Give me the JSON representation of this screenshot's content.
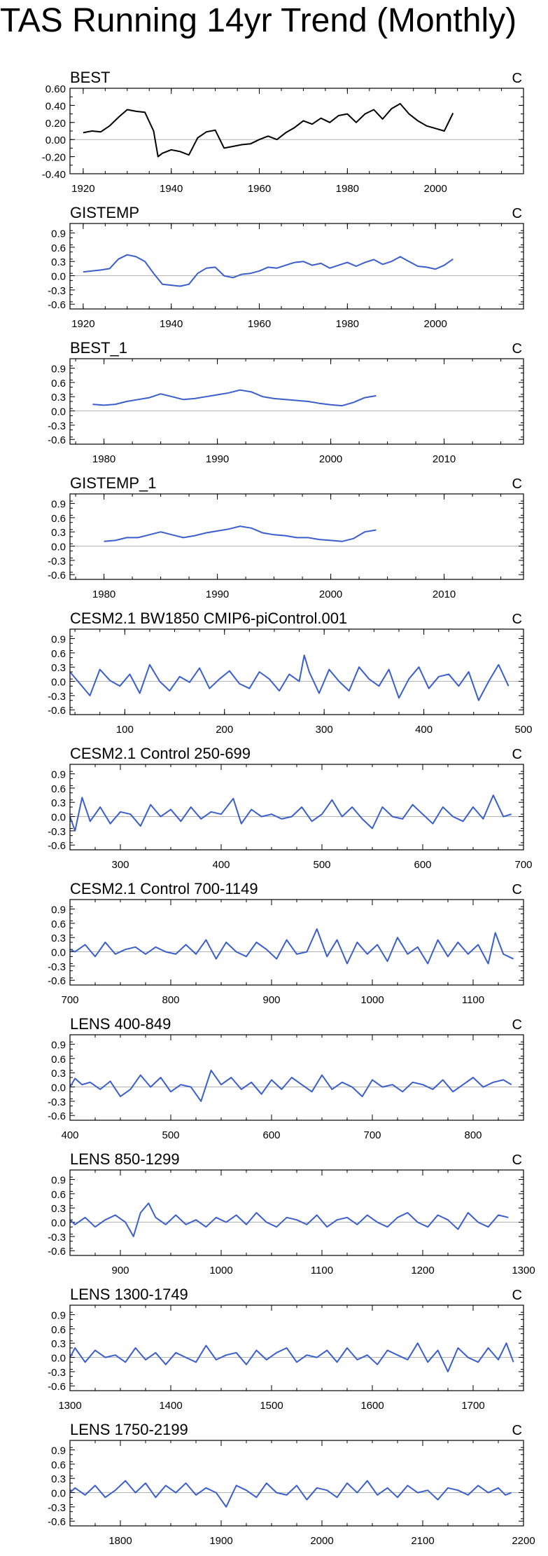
{
  "title": "TAS Running 14yr Trend (Monthly)",
  "colors": {
    "black": "#000000",
    "blue": "#3a5fcd",
    "zero_line": "#b4b4b4"
  },
  "chart_data": [
    {
      "type": "line",
      "title": "BEST",
      "units": "C",
      "color": "black",
      "xlim": [
        1917,
        2020
      ],
      "xticks": [
        1920,
        1940,
        1960,
        1980,
        2000
      ],
      "ylim": [
        -0.4,
        0.6
      ],
      "yticks": [
        -0.4,
        -0.2,
        0.0,
        0.2,
        0.4,
        0.6
      ],
      "ytick_labels": [
        "-0.40",
        "-0.20",
        "0.00",
        "0.20",
        "0.40",
        "0.60"
      ],
      "x": [
        1920,
        1922,
        1924,
        1926,
        1928,
        1930,
        1932,
        1934,
        1936,
        1937,
        1938,
        1940,
        1942,
        1944,
        1946,
        1948,
        1950,
        1952,
        1954,
        1956,
        1958,
        1960,
        1962,
        1964,
        1966,
        1968,
        1970,
        1972,
        1974,
        1976,
        1978,
        1980,
        1982,
        1984,
        1986,
        1988,
        1990,
        1992,
        1994,
        1996,
        1998,
        2000,
        2002,
        2004
      ],
      "values": [
        0.08,
        0.1,
        0.09,
        0.16,
        0.26,
        0.35,
        0.33,
        0.32,
        0.1,
        -0.2,
        -0.16,
        -0.12,
        -0.14,
        -0.18,
        0.02,
        0.09,
        0.11,
        -0.1,
        -0.08,
        -0.06,
        -0.05,
        0.0,
        0.04,
        0.0,
        0.08,
        0.14,
        0.22,
        0.18,
        0.25,
        0.2,
        0.28,
        0.3,
        0.2,
        0.3,
        0.35,
        0.24,
        0.36,
        0.42,
        0.3,
        0.22,
        0.16,
        0.13,
        0.1,
        0.31
      ]
    },
    {
      "type": "line",
      "title": "GISTEMP",
      "units": "C",
      "color": "blue",
      "xlim": [
        1917,
        2020
      ],
      "xticks": [
        1920,
        1940,
        1960,
        1980,
        2000
      ],
      "ylim": [
        -0.7,
        1.1
      ],
      "yticks": [
        -0.6,
        -0.3,
        0.0,
        0.3,
        0.6,
        0.9
      ],
      "ytick_labels": [
        "-0.6",
        "-0.3",
        "0.0",
        "0.3",
        "0.6",
        "0.9"
      ],
      "x": [
        1920,
        1922,
        1924,
        1926,
        1928,
        1930,
        1932,
        1934,
        1936,
        1938,
        1940,
        1942,
        1944,
        1946,
        1948,
        1950,
        1952,
        1954,
        1956,
        1958,
        1960,
        1962,
        1964,
        1966,
        1968,
        1970,
        1972,
        1974,
        1976,
        1978,
        1980,
        1982,
        1984,
        1986,
        1988,
        1990,
        1992,
        1994,
        1996,
        1998,
        2000,
        2002,
        2004
      ],
      "values": [
        0.08,
        0.1,
        0.12,
        0.15,
        0.35,
        0.44,
        0.4,
        0.3,
        0.05,
        -0.18,
        -0.2,
        -0.22,
        -0.18,
        0.05,
        0.16,
        0.18,
        0.0,
        -0.04,
        0.03,
        0.05,
        0.1,
        0.18,
        0.16,
        0.22,
        0.28,
        0.3,
        0.22,
        0.26,
        0.16,
        0.22,
        0.28,
        0.2,
        0.28,
        0.34,
        0.24,
        0.3,
        0.4,
        0.3,
        0.2,
        0.18,
        0.14,
        0.22,
        0.35
      ]
    },
    {
      "type": "line",
      "title": "BEST_1",
      "units": "C",
      "color": "blue",
      "xlim": [
        1977,
        2017
      ],
      "xticks": [
        1980,
        1990,
        2000,
        2010
      ],
      "ylim": [
        -0.7,
        1.1
      ],
      "yticks": [
        -0.6,
        -0.3,
        0.0,
        0.3,
        0.6,
        0.9
      ],
      "ytick_labels": [
        "-0.6",
        "-0.3",
        "0.0",
        "0.3",
        "0.6",
        "0.9"
      ],
      "x": [
        1979,
        1980,
        1981,
        1982,
        1983,
        1984,
        1985,
        1986,
        1987,
        1988,
        1989,
        1990,
        1991,
        1992,
        1993,
        1994,
        1995,
        1996,
        1997,
        1998,
        1999,
        2000,
        2001,
        2002,
        2003,
        2004
      ],
      "values": [
        0.14,
        0.12,
        0.14,
        0.2,
        0.24,
        0.28,
        0.36,
        0.3,
        0.24,
        0.26,
        0.3,
        0.34,
        0.38,
        0.44,
        0.4,
        0.3,
        0.26,
        0.24,
        0.22,
        0.2,
        0.16,
        0.13,
        0.11,
        0.18,
        0.28,
        0.32
      ]
    },
    {
      "type": "line",
      "title": "GISTEMP_1",
      "units": "C",
      "color": "blue",
      "xlim": [
        1977,
        2017
      ],
      "xticks": [
        1980,
        1990,
        2000,
        2010
      ],
      "ylim": [
        -0.7,
        1.1
      ],
      "yticks": [
        -0.6,
        -0.3,
        0.0,
        0.3,
        0.6,
        0.9
      ],
      "ytick_labels": [
        "-0.6",
        "-0.3",
        "0.0",
        "0.3",
        "0.6",
        "0.9"
      ],
      "x": [
        1980,
        1981,
        1982,
        1983,
        1984,
        1985,
        1986,
        1987,
        1988,
        1989,
        1990,
        1991,
        1992,
        1993,
        1994,
        1995,
        1996,
        1997,
        1998,
        1999,
        2000,
        2001,
        2002,
        2003,
        2004
      ],
      "values": [
        0.1,
        0.12,
        0.18,
        0.18,
        0.24,
        0.3,
        0.24,
        0.18,
        0.22,
        0.28,
        0.32,
        0.36,
        0.42,
        0.38,
        0.28,
        0.24,
        0.22,
        0.18,
        0.18,
        0.14,
        0.12,
        0.1,
        0.16,
        0.3,
        0.34
      ]
    },
    {
      "type": "line",
      "title": "CESM2.1 BW1850 CMIP6-piControl.001",
      "units": "C",
      "color": "blue",
      "xlim": [
        45,
        500
      ],
      "xticks": [
        100,
        200,
        300,
        400,
        500
      ],
      "ylim": [
        -0.7,
        1.1
      ],
      "yticks": [
        -0.6,
        -0.3,
        0.0,
        0.3,
        0.6,
        0.9
      ],
      "ytick_labels": [
        "-0.6",
        "-0.3",
        "0.0",
        "0.3",
        "0.6",
        "0.9"
      ],
      "x": [
        45,
        55,
        65,
        75,
        85,
        95,
        105,
        115,
        125,
        135,
        145,
        155,
        165,
        175,
        185,
        195,
        205,
        215,
        225,
        235,
        245,
        255,
        265,
        275,
        280,
        285,
        295,
        305,
        315,
        325,
        335,
        345,
        355,
        365,
        375,
        385,
        395,
        405,
        415,
        425,
        435,
        445,
        455,
        465,
        475,
        485
      ],
      "values": [
        0.2,
        -0.05,
        -0.3,
        0.25,
        0.02,
        -0.1,
        0.15,
        -0.25,
        0.35,
        0.0,
        -0.2,
        0.1,
        -0.02,
        0.28,
        -0.15,
        0.05,
        0.22,
        -0.05,
        -0.15,
        0.2,
        0.05,
        -0.2,
        0.15,
        0.0,
        0.55,
        0.2,
        -0.25,
        0.25,
        0.0,
        -0.2,
        0.3,
        0.05,
        -0.1,
        0.25,
        -0.35,
        0.05,
        0.3,
        -0.15,
        0.1,
        0.15,
        -0.1,
        0.2,
        -0.4,
        0.0,
        0.35,
        -0.1
      ]
    },
    {
      "type": "line",
      "title": "CESM2.1 Control 250-699",
      "units": "C",
      "color": "blue",
      "xlim": [
        250,
        700
      ],
      "xticks": [
        300,
        400,
        500,
        600,
        700
      ],
      "ylim": [
        -0.7,
        1.1
      ],
      "yticks": [
        -0.6,
        -0.3,
        0.0,
        0.3,
        0.6,
        0.9
      ],
      "ytick_labels": [
        "-0.6",
        "-0.3",
        "0.0",
        "0.3",
        "0.6",
        "0.9"
      ],
      "x": [
        250,
        255,
        262,
        270,
        280,
        290,
        300,
        310,
        320,
        330,
        340,
        350,
        360,
        370,
        380,
        390,
        400,
        412,
        420,
        430,
        440,
        450,
        460,
        470,
        480,
        490,
        500,
        510,
        520,
        530,
        540,
        550,
        560,
        570,
        580,
        590,
        600,
        610,
        620,
        630,
        640,
        650,
        660,
        670,
        680,
        688
      ],
      "values": [
        0.0,
        -0.3,
        0.4,
        -0.1,
        0.2,
        -0.15,
        0.1,
        0.05,
        -0.2,
        0.25,
        0.0,
        0.15,
        -0.1,
        0.2,
        -0.05,
        0.1,
        0.05,
        0.38,
        -0.15,
        0.15,
        0.0,
        0.05,
        -0.05,
        0.0,
        0.2,
        -0.1,
        0.05,
        0.35,
        0.0,
        0.2,
        -0.05,
        -0.25,
        0.2,
        0.0,
        -0.05,
        0.25,
        0.05,
        -0.15,
        0.2,
        0.0,
        -0.1,
        0.2,
        -0.05,
        0.45,
        0.0,
        0.05
      ]
    },
    {
      "type": "line",
      "title": "CESM2.1 Control 700-1149",
      "units": "C",
      "color": "blue",
      "xlim": [
        700,
        1150
      ],
      "xticks": [
        700,
        800,
        900,
        1000,
        1100
      ],
      "ylim": [
        -0.7,
        1.1
      ],
      "yticks": [
        -0.6,
        -0.3,
        0.0,
        0.3,
        0.6,
        0.9
      ],
      "ytick_labels": [
        "-0.6",
        "-0.3",
        "0.0",
        "0.3",
        "0.6",
        "0.9"
      ],
      "x": [
        700,
        705,
        715,
        725,
        735,
        745,
        755,
        765,
        775,
        785,
        795,
        805,
        815,
        825,
        835,
        845,
        855,
        865,
        875,
        885,
        895,
        905,
        915,
        925,
        935,
        945,
        955,
        965,
        975,
        985,
        995,
        1005,
        1015,
        1025,
        1035,
        1045,
        1055,
        1065,
        1075,
        1085,
        1095,
        1105,
        1115,
        1122,
        1130,
        1140
      ],
      "values": [
        0.05,
        0.0,
        0.15,
        -0.1,
        0.2,
        -0.05,
        0.05,
        0.1,
        -0.05,
        0.1,
        0.0,
        -0.05,
        0.15,
        -0.05,
        0.25,
        -0.15,
        0.2,
        0.0,
        -0.1,
        0.2,
        0.05,
        -0.15,
        0.25,
        -0.05,
        0.0,
        0.48,
        -0.1,
        0.25,
        -0.25,
        0.2,
        -0.05,
        0.15,
        -0.2,
        0.3,
        -0.05,
        0.1,
        -0.25,
        0.25,
        -0.1,
        0.2,
        -0.05,
        0.15,
        -0.25,
        0.4,
        -0.05,
        -0.15
      ]
    },
    {
      "type": "line",
      "title": "LENS 400-849",
      "units": "C",
      "color": "blue",
      "xlim": [
        400,
        850
      ],
      "xticks": [
        400,
        500,
        600,
        700,
        800
      ],
      "ylim": [
        -0.7,
        1.1
      ],
      "yticks": [
        -0.6,
        -0.3,
        0.0,
        0.3,
        0.6,
        0.9
      ],
      "ytick_labels": [
        "-0.6",
        "-0.3",
        "0.0",
        "0.3",
        "0.6",
        "0.9"
      ],
      "x": [
        400,
        405,
        412,
        420,
        430,
        440,
        450,
        460,
        470,
        480,
        490,
        500,
        510,
        520,
        530,
        540,
        550,
        560,
        570,
        580,
        590,
        600,
        610,
        620,
        630,
        640,
        650,
        660,
        670,
        680,
        690,
        700,
        710,
        720,
        730,
        740,
        750,
        760,
        770,
        780,
        790,
        800,
        810,
        820,
        830,
        838
      ],
      "values": [
        0.0,
        0.18,
        0.05,
        0.1,
        -0.05,
        0.12,
        -0.2,
        -0.05,
        0.25,
        0.0,
        0.2,
        -0.1,
        0.05,
        0.0,
        -0.3,
        0.35,
        0.05,
        0.2,
        -0.05,
        0.1,
        -0.15,
        0.15,
        -0.05,
        0.2,
        0.05,
        -0.1,
        0.25,
        -0.05,
        0.1,
        0.0,
        -0.2,
        0.15,
        0.0,
        0.05,
        -0.1,
        0.1,
        0.05,
        -0.05,
        0.15,
        -0.1,
        0.05,
        0.2,
        0.0,
        0.1,
        0.15,
        0.05
      ]
    },
    {
      "type": "line",
      "title": "LENS 850-1299",
      "units": "C",
      "color": "blue",
      "xlim": [
        850,
        1300
      ],
      "xticks": [
        900,
        1000,
        1100,
        1200,
        1300
      ],
      "ylim": [
        -0.7,
        1.1
      ],
      "yticks": [
        -0.6,
        -0.3,
        0.0,
        0.3,
        0.6,
        0.9
      ],
      "ytick_labels": [
        "-0.6",
        "-0.3",
        "0.0",
        "0.3",
        "0.6",
        "0.9"
      ],
      "x": [
        850,
        855,
        865,
        875,
        885,
        895,
        905,
        913,
        920,
        928,
        935,
        945,
        955,
        965,
        975,
        985,
        995,
        1005,
        1015,
        1025,
        1035,
        1045,
        1055,
        1065,
        1075,
        1085,
        1095,
        1105,
        1115,
        1125,
        1135,
        1145,
        1155,
        1165,
        1175,
        1185,
        1195,
        1205,
        1215,
        1225,
        1235,
        1245,
        1255,
        1265,
        1275,
        1285
      ],
      "values": [
        0.05,
        -0.05,
        0.1,
        -0.1,
        0.05,
        0.15,
        0.0,
        -0.3,
        0.2,
        0.4,
        0.1,
        -0.05,
        0.15,
        -0.05,
        0.05,
        -0.1,
        0.1,
        0.0,
        0.15,
        -0.05,
        0.2,
        0.0,
        -0.1,
        0.1,
        0.05,
        -0.05,
        0.15,
        -0.1,
        0.05,
        0.1,
        -0.05,
        0.15,
        0.0,
        -0.1,
        0.1,
        0.2,
        0.0,
        -0.1,
        0.15,
        0.05,
        -0.15,
        0.2,
        0.0,
        -0.1,
        0.15,
        0.1
      ]
    },
    {
      "type": "line",
      "title": "LENS 1300-1749",
      "units": "C",
      "color": "blue",
      "xlim": [
        1300,
        1750
      ],
      "xticks": [
        1300,
        1400,
        1500,
        1600,
        1700
      ],
      "ylim": [
        -0.7,
        1.1
      ],
      "yticks": [
        -0.6,
        -0.3,
        0.0,
        0.3,
        0.6,
        0.9
      ],
      "ytick_labels": [
        "-0.6",
        "-0.3",
        "0.0",
        "0.3",
        "0.6",
        "0.9"
      ],
      "x": [
        1300,
        1305,
        1315,
        1325,
        1335,
        1345,
        1355,
        1365,
        1375,
        1385,
        1395,
        1405,
        1415,
        1425,
        1435,
        1445,
        1455,
        1465,
        1475,
        1485,
        1495,
        1505,
        1515,
        1525,
        1535,
        1545,
        1555,
        1565,
        1575,
        1585,
        1595,
        1605,
        1615,
        1625,
        1635,
        1645,
        1655,
        1665,
        1675,
        1685,
        1695,
        1705,
        1715,
        1725,
        1733,
        1740
      ],
      "values": [
        0.0,
        0.2,
        -0.1,
        0.15,
        0.0,
        0.05,
        -0.1,
        0.2,
        -0.05,
        0.1,
        -0.15,
        0.1,
        0.0,
        -0.1,
        0.25,
        -0.05,
        0.05,
        0.1,
        -0.15,
        0.15,
        -0.05,
        0.1,
        0.2,
        -0.1,
        0.05,
        0.0,
        0.15,
        -0.1,
        0.2,
        -0.05,
        0.05,
        -0.15,
        0.15,
        0.05,
        -0.05,
        0.3,
        -0.1,
        0.15,
        -0.3,
        0.2,
        0.0,
        -0.1,
        0.2,
        -0.05,
        0.3,
        -0.1
      ]
    },
    {
      "type": "line",
      "title": "LENS 1750-2199",
      "units": "C",
      "color": "blue",
      "xlim": [
        1750,
        2200
      ],
      "xticks": [
        1800,
        1900,
        2000,
        2100,
        2200
      ],
      "ylim": [
        -0.7,
        1.1
      ],
      "yticks": [
        -0.6,
        -0.3,
        0.0,
        0.3,
        0.6,
        0.9
      ],
      "ytick_labels": [
        "-0.6",
        "-0.3",
        "0.0",
        "0.3",
        "0.6",
        "0.9"
      ],
      "x": [
        1750,
        1755,
        1765,
        1775,
        1785,
        1795,
        1805,
        1815,
        1825,
        1835,
        1845,
        1855,
        1865,
        1875,
        1885,
        1895,
        1905,
        1915,
        1925,
        1935,
        1945,
        1955,
        1965,
        1975,
        1985,
        1995,
        2005,
        2015,
        2025,
        2035,
        2045,
        2055,
        2065,
        2075,
        2085,
        2095,
        2105,
        2115,
        2125,
        2135,
        2145,
        2155,
        2165,
        2175,
        2182,
        2188
      ],
      "values": [
        0.0,
        0.1,
        -0.05,
        0.15,
        -0.1,
        0.05,
        0.25,
        0.0,
        0.2,
        -0.1,
        0.15,
        0.0,
        0.2,
        -0.05,
        0.1,
        0.0,
        -0.3,
        0.15,
        0.05,
        -0.1,
        0.2,
        0.0,
        -0.05,
        0.15,
        -0.15,
        0.1,
        0.05,
        -0.1,
        0.2,
        0.0,
        0.25,
        -0.05,
        0.1,
        -0.1,
        0.15,
        0.0,
        0.05,
        -0.15,
        0.1,
        0.05,
        -0.05,
        0.15,
        0.0,
        0.1,
        -0.05,
        0.0
      ]
    }
  ]
}
